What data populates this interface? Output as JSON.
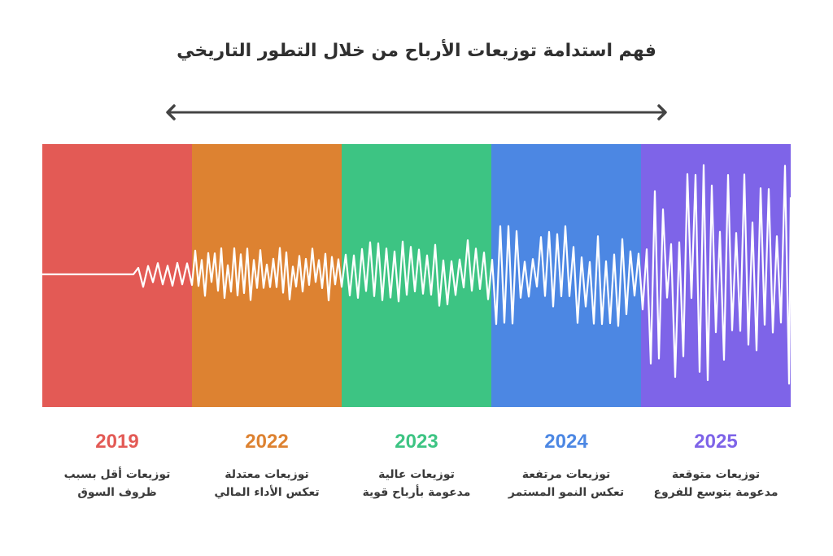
{
  "title": "فهم استدامة توزيعات الأرباح من خلال التطور التاريخي",
  "timeline_arrow": {
    "direction": "bidirectional",
    "color": "#444444"
  },
  "periods": [
    {
      "year": "2019",
      "color": "#E35A55",
      "line1": "توزيعات أقل بسبب",
      "line2": "ظروف السوق",
      "amplitude": "very low"
    },
    {
      "year": "2022",
      "color": "#DD8231",
      "line1": "توزيعات معتدلة",
      "line2": "تعكس الأداء المالي",
      "amplitude": "low-medium"
    },
    {
      "year": "2023",
      "color": "#3DC483",
      "line1": "توزيعات عالية",
      "line2": "مدعومة بأرباح قوية",
      "amplitude": "medium"
    },
    {
      "year": "2024",
      "color": "#4C87E3",
      "line1": "توزيعات مرتفعة",
      "line2": "تعكس النمو المستمر",
      "amplitude": "medium-high"
    },
    {
      "year": "2025",
      "color": "#7E64E8",
      "line1": "توزيعات متوقعة",
      "line2": "مدعومة بتوسع للفروع",
      "amplitude": "high"
    }
  ],
  "wave": {
    "color": "#FFFFFF"
  }
}
